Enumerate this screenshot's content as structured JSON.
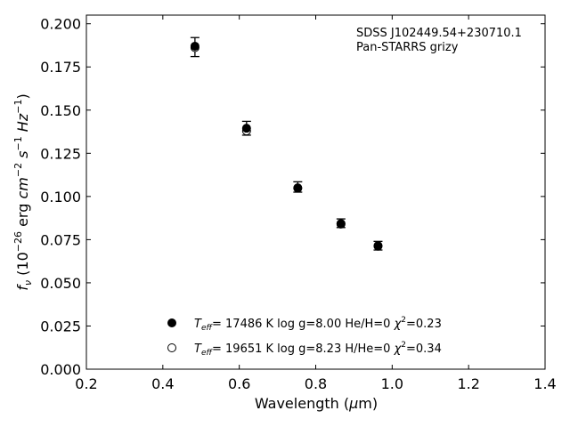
{
  "chart_data": {
    "type": "scatter",
    "annotation": {
      "line1": "SDSS J102449.54+230710.1",
      "line2": "Pan-STARRS grizy"
    },
    "xlabel": {
      "prefix": "Wavelength (",
      "mu": "μ",
      "suffix": "m)"
    },
    "ylabel": {
      "f": "f",
      "nu": "ν",
      "open": " (10",
      "exp1": "−26",
      "mid": " erg ",
      "cm": "cm",
      "exp2": "−2",
      "s": " s",
      "exp3": "−1",
      "hz": " Hz",
      "exp4": "−1",
      "close": ")"
    },
    "xlim": [
      0.2,
      1.4
    ],
    "ylim": [
      0.0,
      0.205
    ],
    "xticks": [
      "0.2",
      "0.4",
      "0.6",
      "0.8",
      "1.0",
      "1.2",
      "1.4"
    ],
    "yticks": [
      "0.000",
      "0.025",
      "0.050",
      "0.075",
      "0.100",
      "0.125",
      "0.150",
      "0.175",
      "0.200"
    ],
    "observed": {
      "x": [
        0.484,
        0.619,
        0.753,
        0.866,
        0.963
      ],
      "y": [
        0.1865,
        0.1395,
        0.1055,
        0.0845,
        0.0715
      ],
      "err": [
        0.0055,
        0.004,
        0.003,
        0.0025,
        0.0025
      ]
    },
    "models": [
      {
        "marker": "filled",
        "teff_T": "T",
        "teff_sub": "eff",
        "rest": "= 17486 K  log g=8.00  He/H=0  ",
        "chi": "χ",
        "chi_sup": "2",
        "chi_rest": "=0.23",
        "x": [
          0.484,
          0.619,
          0.753,
          0.866,
          0.963
        ],
        "y": [
          0.187,
          0.1395,
          0.105,
          0.084,
          0.0715
        ]
      },
      {
        "marker": "open",
        "teff_T": "T",
        "teff_sub": "eff",
        "rest": "= 19651 K  log g=8.23  H/He=0  ",
        "chi": "χ",
        "chi_sup": "2",
        "chi_rest": "=0.34",
        "x": [
          0.484,
          0.619,
          0.753,
          0.866,
          0.963
        ],
        "y": [
          0.1862,
          0.138,
          0.1048,
          0.0843,
          0.0712
        ]
      }
    ]
  }
}
